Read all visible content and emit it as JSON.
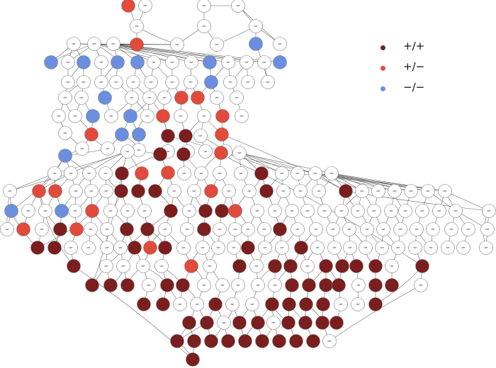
{
  "legend": {
    "items": [
      {
        "label": "+/+",
        "color": "#7b1e1e"
      },
      {
        "label": "+/−",
        "color": "#e24a3b"
      },
      {
        "label": "−/−",
        "color": "#6b8fe0"
      }
    ]
  },
  "node_fill_neutral": "#ffffff",
  "node_label": "ORF"
}
